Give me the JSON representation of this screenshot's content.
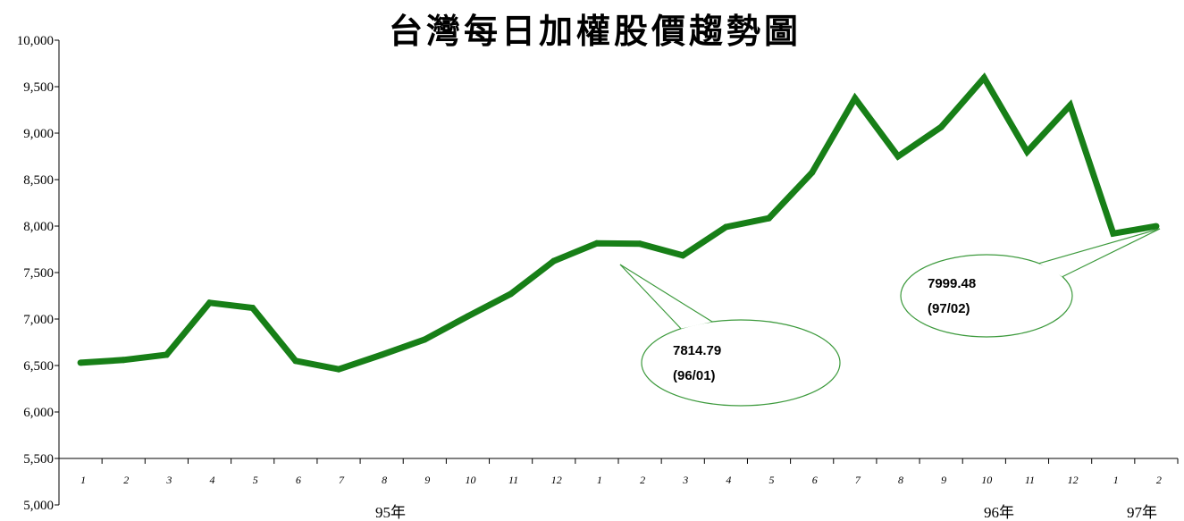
{
  "chart_data": {
    "type": "line",
    "title": "台灣每日加權股價趨勢圖",
    "categories": [
      "1",
      "2",
      "3",
      "4",
      "5",
      "6",
      "7",
      "8",
      "9",
      "10",
      "11",
      "12",
      "1",
      "2",
      "3",
      "4",
      "5",
      "6",
      "7",
      "8",
      "9",
      "10",
      "11",
      "12",
      "1",
      "2"
    ],
    "year_labels": [
      "95年",
      "96年",
      "97年"
    ],
    "series": [
      {
        "values": [
          6530,
          6560,
          6615,
          7175,
          7120,
          6550,
          6460,
          6615,
          6780,
          7030,
          7270,
          7625,
          7814.79,
          7810,
          7685,
          7990,
          8085,
          8575,
          9375,
          8750,
          9065,
          9595,
          8800,
          9300,
          7920,
          7999.48
        ]
      }
    ],
    "ylim": [
      5000,
      10000
    ],
    "yticks": [
      5000,
      5500,
      6000,
      6500,
      7000,
      7500,
      8000,
      8500,
      9000,
      9500,
      10000
    ],
    "ytick_labels": [
      "5,000",
      "5,500",
      "6,000",
      "6,500",
      "7,000",
      "7,500",
      "8,000",
      "8,500",
      "9,000",
      "9,500",
      "10,000"
    ],
    "x_axis_crosses_at": 5500,
    "grid": false,
    "annotations": [
      {
        "value": "7814.79",
        "date": "(96/01)",
        "point_index": 12
      },
      {
        "value": "7999.48",
        "date": "(97/02)",
        "point_index": 25
      }
    ],
    "colors": {
      "line": "#177f17",
      "callout_border": "#3d9a3d",
      "callout_fill": "#ffffff"
    }
  }
}
